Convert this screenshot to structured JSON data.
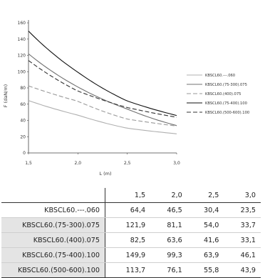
{
  "chart_data": {
    "type": "line",
    "title": "",
    "xlabel": "L (m)",
    "ylabel": "F (daN/m)",
    "x": [
      1.5,
      2.0,
      2.5,
      3.0
    ],
    "xticks": [
      "1,5",
      "2,0",
      "2,5",
      "3,0"
    ],
    "yticks": [
      "0",
      "20",
      "40",
      "60",
      "80",
      "100",
      "120",
      "140",
      "160"
    ],
    "xlim": [
      1.5,
      3.0
    ],
    "ylim": [
      0,
      160
    ],
    "grid": false,
    "legend_position": "right",
    "series": [
      {
        "name": "KBSCL60.---.060",
        "values": [
          64.4,
          46.5,
          30.4,
          23.5
        ],
        "color": "#b0b0b0",
        "dash": "none"
      },
      {
        "name": "KBSCL60.(75-300).075",
        "values": [
          121.9,
          81.1,
          54.0,
          33.7
        ],
        "color": "#707070",
        "dash": "none"
      },
      {
        "name": "KBSCL60.(400).075",
        "values": [
          82.5,
          63.6,
          41.6,
          33.1
        ],
        "color": "#9a9a9a",
        "dash": "6,3"
      },
      {
        "name": "KBSCL60.(75-400).100",
        "values": [
          149.9,
          99.3,
          63.9,
          46.1
        ],
        "color": "#111111",
        "dash": "none"
      },
      {
        "name": "KBSCL60.(500-600).100",
        "values": [
          113.7,
          76.1,
          55.8,
          43.9
        ],
        "color": "#333333",
        "dash": "6,3"
      }
    ]
  },
  "table": {
    "columns": [
      "1,5",
      "2,0",
      "2,5",
      "3,0"
    ],
    "rows": [
      {
        "label": "KBSCL60.---.060",
        "cells": [
          "64,4",
          "46,5",
          "30,4",
          "23,5"
        ]
      },
      {
        "label": "KBSCL60.(75-300).075",
        "cells": [
          "121,9",
          "81,1",
          "54,0",
          "33,7"
        ]
      },
      {
        "label": "KBSCL60.(400).075",
        "cells": [
          "82,5",
          "63,6",
          "41,6",
          "33,1"
        ]
      },
      {
        "label": "KBSCL60.(75-400).100",
        "cells": [
          "149,9",
          "99,3",
          "63,9",
          "46,1"
        ]
      },
      {
        "label": "KBSCL60.(500-600).100",
        "cells": [
          "113,7",
          "76,1",
          "55,8",
          "43,9"
        ]
      }
    ]
  }
}
